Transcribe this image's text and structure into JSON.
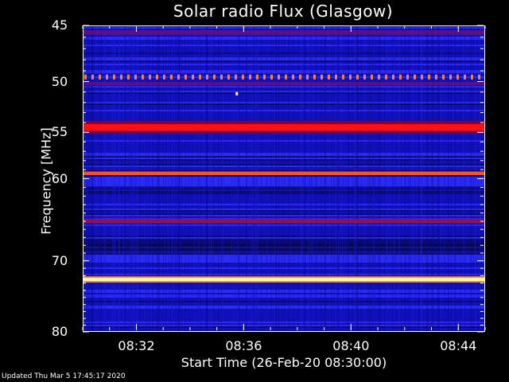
{
  "chart_data": {
    "type": "heatmap",
    "title": "Solar radio Flux (Glasgow)",
    "xlabel": "Start Time (26-Feb-20 08:30:00)",
    "ylabel": "Frequency [MHz]",
    "x_ticks": [
      "08:32",
      "08:36",
      "08:40",
      "08:44"
    ],
    "y_ticks": [
      45,
      50,
      55,
      60,
      70,
      80
    ],
    "y_scale": "log",
    "ylim": [
      45,
      80
    ],
    "time_range_minutes": [
      0,
      15
    ],
    "colormap": [
      "#0a0a60",
      "#1010b8",
      "#3030ff",
      "#a01050",
      "#ff2010",
      "#ff8020",
      "#ffffb0"
    ],
    "bands": [
      {
        "freq": 45.6,
        "width_mhz": 0.4,
        "level": "low"
      },
      {
        "freq": 49.5,
        "width_mhz": 0.3,
        "level": "pulsed"
      },
      {
        "freq": 50.2,
        "width_mhz": 0.3,
        "level": "low"
      },
      {
        "freq": 54.5,
        "width_mhz": 0.7,
        "level": "high"
      },
      {
        "freq": 59.4,
        "width_mhz": 0.4,
        "level": "medium"
      },
      {
        "freq": 65.0,
        "width_mhz": 0.5,
        "level": "medium-low"
      },
      {
        "freq": 72.5,
        "width_mhz": 0.4,
        "level": "max"
      }
    ]
  },
  "footer": {
    "updated": "Updated Thu Mar  5 17:45:17 2020"
  }
}
